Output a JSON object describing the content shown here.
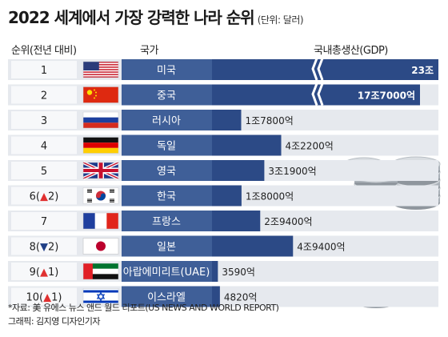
{
  "header": {
    "title": "2022 세계에서 가장 강력한 나라 순위",
    "unit": "(단위: 달러)",
    "col_rank": "순위(전년 대비)",
    "col_country": "국가",
    "col_gdp": "국내총생산(GDP)"
  },
  "colors": {
    "row_bg": "#e6e9ee",
    "rank_cell": "#f7f8fa",
    "country_cell": "#3f5f98",
    "bar": "#2c4a86",
    "up": "#e03030",
    "down": "#1f3f86"
  },
  "chart_data": {
    "type": "bar",
    "orientation": "horizontal",
    "unit": "달러",
    "axis_break": true,
    "categories": [
      "미국",
      "중국",
      "러시아",
      "독일",
      "영국",
      "한국",
      "프랑스",
      "일본",
      "아랍에미리트(UAE)",
      "이스라엘"
    ],
    "ranks": [
      "1",
      "2",
      "3",
      "4",
      "5",
      "6(▲2)",
      "7",
      "8(▼2)",
      "9(▲1)",
      "10(▲1)"
    ],
    "flags": [
      "us-flag",
      "china-flag",
      "russia-flag",
      "germany-flag",
      "uk-flag",
      "korea-flag",
      "france-flag",
      "japan-flag",
      "uae-flag",
      "israel-flag"
    ],
    "values": [
      230000,
      177000,
      17800,
      42200,
      31900,
      18000,
      29400,
      49400,
      3590,
      4820
    ],
    "value_unit": "억 달러",
    "value_labels": [
      "23조",
      "17조7000억",
      "1조7800억",
      "4조2200억",
      "3조1900억",
      "1조8000억",
      "2조9400억",
      "4조9400억",
      "3590억",
      "4820억"
    ]
  },
  "footer": {
    "source": "*자료: 美 유에스 뉴스 앤드 월드 리포트(US NEWS AND WORLD REPORT)",
    "credit": "그래픽: 김지영 디자인기자"
  }
}
